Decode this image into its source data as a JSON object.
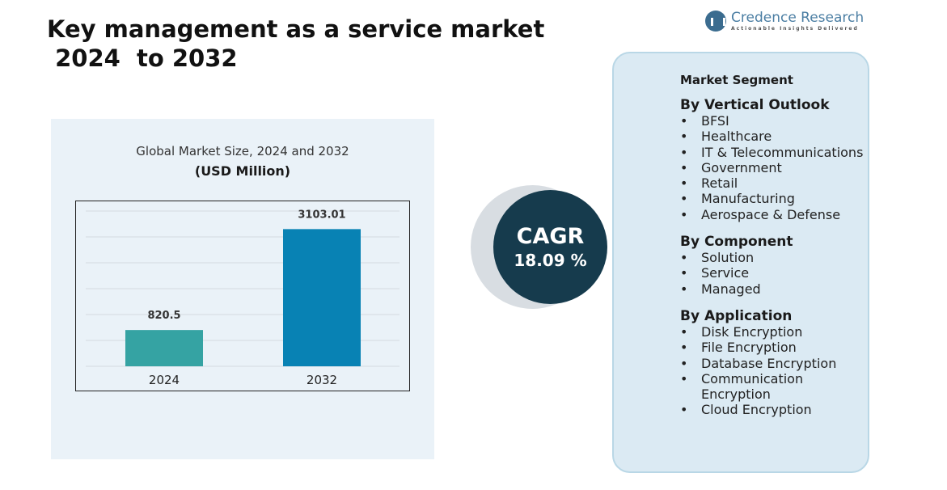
{
  "title": "Key management as a service market\n 2024  to 2032",
  "logo": {
    "name": "Credence Research",
    "tagline": "Actionable Insights Delivered"
  },
  "chart_data": {
    "type": "bar",
    "title": "Global Market Size, 2024 and 2032",
    "subtitle": "(USD Million)",
    "categories": [
      "2024",
      "2032"
    ],
    "values": [
      820.5,
      3103.01
    ],
    "data_labels": [
      "820.5",
      "3103.01"
    ],
    "colors": [
      "#35a3a3",
      "#0882b4"
    ],
    "grid": true
  },
  "cagr": {
    "label": "CAGR",
    "value": "18.09 %"
  },
  "segments": {
    "title": "Market Segment",
    "groups": [
      {
        "title": "By Vertical Outlook",
        "items": [
          "BFSI",
          "Healthcare",
          "IT & Telecommunications",
          "Government",
          "Retail",
          "Manufacturing",
          "Aerospace & Defense"
        ]
      },
      {
        "title": "By Component",
        "items": [
          "Solution",
          "Service",
          "Managed"
        ]
      },
      {
        "title": "By Application",
        "items": [
          "Disk Encryption",
          "File Encryption",
          "Database Encryption",
          "Communication Encryption",
          "Cloud Encryption"
        ]
      }
    ]
  }
}
